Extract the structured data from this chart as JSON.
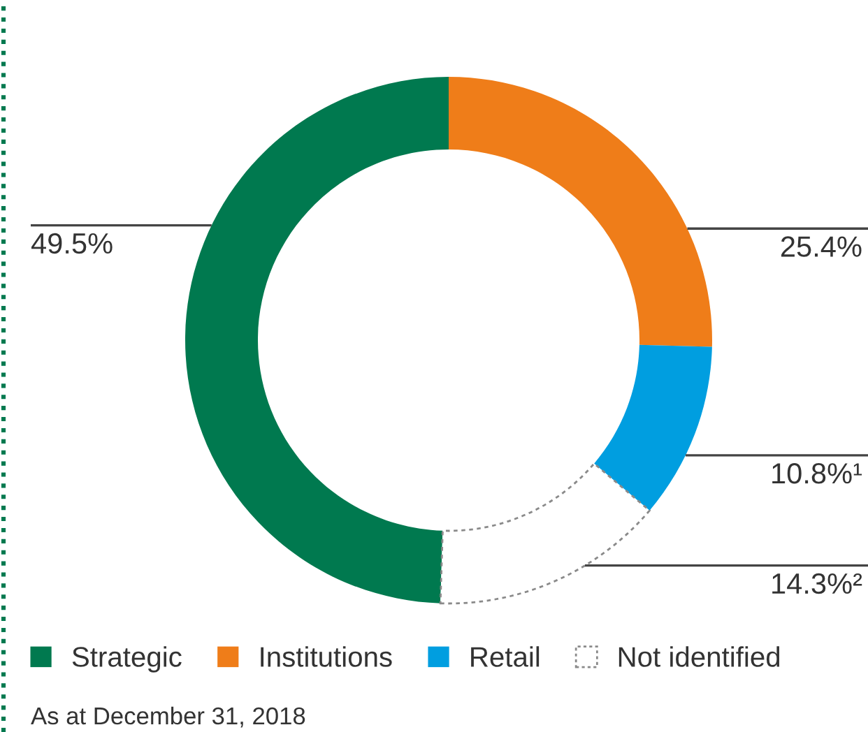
{
  "chart_data": {
    "type": "donut",
    "categories": [
      "Strategic",
      "Institutions",
      "Retail",
      "Not identified"
    ],
    "values": [
      49.5,
      25.4,
      10.8,
      14.3
    ],
    "colors": [
      "#00794f",
      "#ef7d19",
      "#009ee0",
      "#ffffff"
    ],
    "value_labels": [
      "49.5%",
      "25.4%",
      "10.8%¹",
      "14.3%²"
    ],
    "legend": "bottom",
    "annotations": [
      "As at December 31, 2018"
    ]
  }
}
